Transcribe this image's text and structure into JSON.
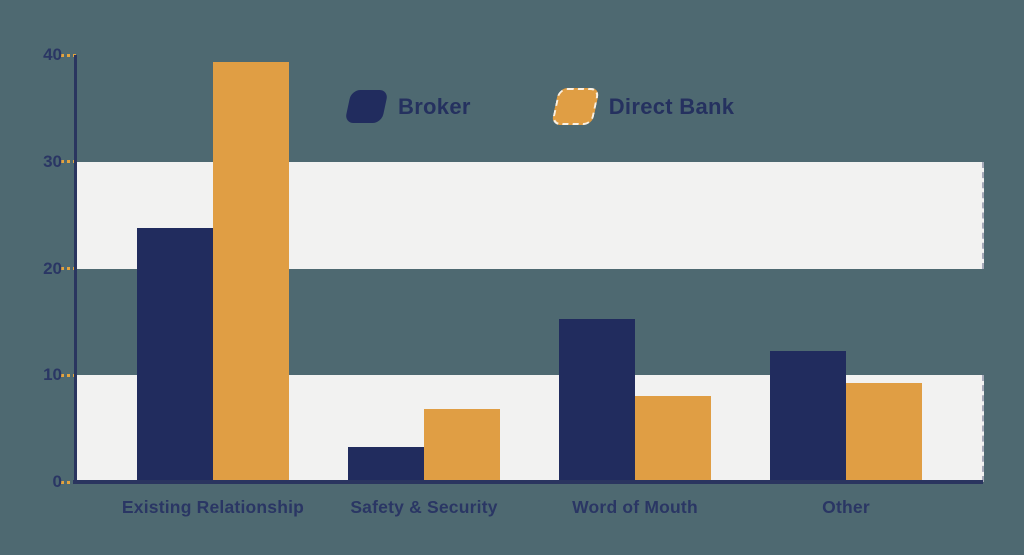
{
  "chart_data": {
    "type": "bar",
    "title": "",
    "xlabel": "",
    "ylabel": "",
    "categories": [
      "Existing Relationship",
      "Safety & Security",
      "Word of Mouth",
      "Other"
    ],
    "series": [
      {
        "name": "Broker",
        "color": "#212C5E",
        "values": [
          23.8,
          3.3,
          15.3,
          12.3
        ],
        "swatch_outline": false
      },
      {
        "name": "Direct Bank",
        "color": "#E09E44",
        "values": [
          39.3,
          6.8,
          8.1,
          9.3
        ],
        "swatch_outline": true
      }
    ],
    "ylim": [
      0,
      40
    ],
    "yticks": [
      0,
      10,
      20,
      30,
      40
    ],
    "grid_bands": [
      [
        0,
        10
      ],
      [
        20,
        30
      ]
    ],
    "legend_position": "top-center",
    "grid": "horizontal-bands",
    "colors": {
      "background": "#4E6971",
      "band": "#F2F2F1",
      "axis": "#2A355F",
      "tick": "#E3A33E",
      "text": "#2A3664"
    }
  }
}
